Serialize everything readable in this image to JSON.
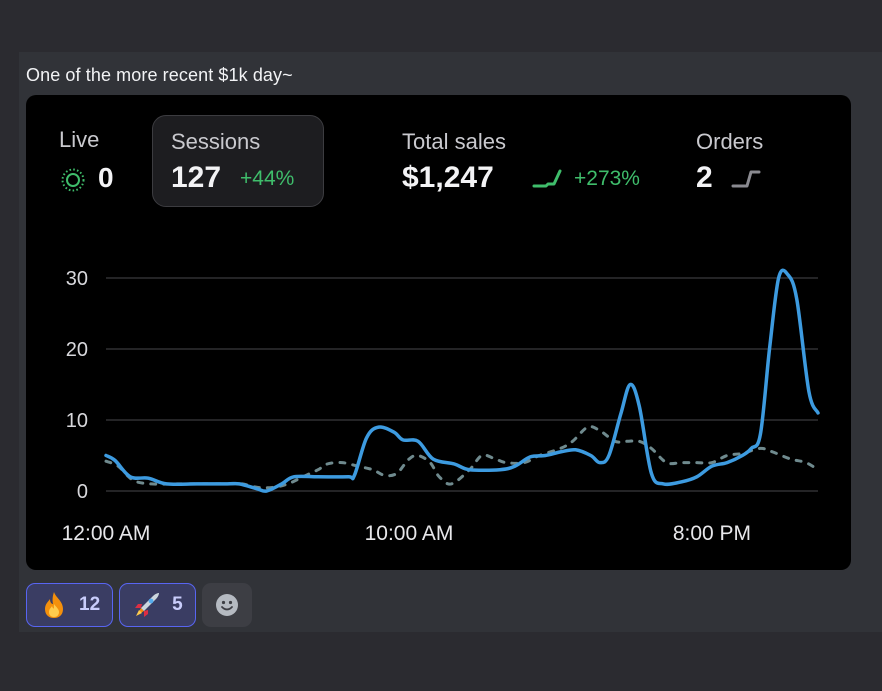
{
  "message": {
    "text": "One of the more recent $1k day~"
  },
  "stats": {
    "live": {
      "label": "Live",
      "value": "0"
    },
    "sessions": {
      "label": "Sessions",
      "value": "127",
      "delta": "+44%"
    },
    "total_sales": {
      "label": "Total sales",
      "value": "$1,247",
      "delta": "+273%"
    },
    "orders": {
      "label": "Orders",
      "value": "2"
    }
  },
  "colors": {
    "current": "#3d9be0",
    "previous": "#6f8a8e",
    "positive": "#3fbd6b",
    "reaction_border": "#5865f2"
  },
  "chart_data": {
    "type": "line",
    "ylim": [
      0,
      30
    ],
    "yticks": [
      "0",
      "10",
      "20",
      "30"
    ],
    "xticks": [
      {
        "label": "12:00 AM",
        "x": 0
      },
      {
        "label": "10:00 AM",
        "x": 10
      },
      {
        "label": "8:00 PM",
        "x": 20
      }
    ],
    "series": [
      {
        "style": "solid",
        "points": [
          [
            0,
            5
          ],
          [
            0.3,
            4.3
          ],
          [
            0.8,
            2
          ],
          [
            1.4,
            1.8
          ],
          [
            2,
            1
          ],
          [
            3,
            1
          ],
          [
            4,
            1
          ],
          [
            4.4,
            1
          ],
          [
            5,
            0.3
          ],
          [
            5.3,
            0
          ],
          [
            5.8,
            1
          ],
          [
            6.2,
            2
          ],
          [
            7,
            2
          ],
          [
            8,
            2
          ],
          [
            8.2,
            2.2
          ],
          [
            8.6,
            7.5
          ],
          [
            9,
            9
          ],
          [
            9.5,
            8.3
          ],
          [
            9.8,
            7.2
          ],
          [
            10.3,
            7
          ],
          [
            10.8,
            4.5
          ],
          [
            11.5,
            3.8
          ],
          [
            12,
            3
          ],
          [
            13,
            3
          ],
          [
            13.5,
            3.5
          ],
          [
            14,
            4.8
          ],
          [
            14.5,
            5
          ],
          [
            15,
            5.5
          ],
          [
            15.5,
            5.8
          ],
          [
            16,
            5
          ],
          [
            16.3,
            4
          ],
          [
            16.6,
            5
          ],
          [
            17,
            11
          ],
          [
            17.3,
            15
          ],
          [
            17.6,
            12
          ],
          [
            18,
            2.5
          ],
          [
            18.4,
            1
          ],
          [
            19,
            1.3
          ],
          [
            19.5,
            2
          ],
          [
            20,
            3.5
          ],
          [
            20.5,
            4
          ],
          [
            21,
            5
          ],
          [
            21.3,
            6
          ],
          [
            21.6,
            8
          ],
          [
            21.9,
            20
          ],
          [
            22.2,
            30
          ],
          [
            22.5,
            30.5
          ],
          [
            22.8,
            27
          ],
          [
            23.2,
            14
          ],
          [
            23.5,
            11
          ]
        ]
      },
      {
        "style": "dashed",
        "points": [
          [
            0,
            4.2
          ],
          [
            0.4,
            3.5
          ],
          [
            0.9,
            1.5
          ],
          [
            1.5,
            1
          ],
          [
            2.2,
            1
          ],
          [
            3,
            1
          ],
          [
            4,
            1
          ],
          [
            4.5,
            1
          ],
          [
            5,
            0.5
          ],
          [
            5.5,
            0.5
          ],
          [
            6,
            1
          ],
          [
            6.5,
            2
          ],
          [
            7,
            3
          ],
          [
            7.3,
            3.8
          ],
          [
            7.8,
            4
          ],
          [
            8.3,
            3.5
          ],
          [
            8.8,
            3
          ],
          [
            9.2,
            2.2
          ],
          [
            9.6,
            2.5
          ],
          [
            10,
            4.5
          ],
          [
            10.3,
            5
          ],
          [
            10.7,
            4
          ],
          [
            11,
            2
          ],
          [
            11.4,
            1
          ],
          [
            12,
            3
          ],
          [
            12.4,
            5
          ],
          [
            12.8,
            4.6
          ],
          [
            13.2,
            4
          ],
          [
            13.8,
            4
          ],
          [
            14.3,
            5
          ],
          [
            15,
            6
          ],
          [
            15.4,
            7
          ],
          [
            15.9,
            9
          ],
          [
            16.3,
            8.5
          ],
          [
            16.8,
            7
          ],
          [
            17.2,
            7
          ],
          [
            17.6,
            7
          ],
          [
            18,
            6
          ],
          [
            18.5,
            4
          ],
          [
            19,
            4
          ],
          [
            19.5,
            4
          ],
          [
            20,
            4
          ],
          [
            20.5,
            5
          ],
          [
            21,
            5.3
          ],
          [
            21.6,
            6
          ],
          [
            22,
            5.5
          ],
          [
            22.6,
            4.5
          ],
          [
            23.1,
            4
          ],
          [
            23.5,
            3
          ]
        ]
      }
    ]
  },
  "reactions": [
    {
      "emoji": "fire-emoji",
      "count": "12",
      "active": true
    },
    {
      "emoji": "rocket-emoji",
      "count": "5",
      "active": true
    }
  ]
}
